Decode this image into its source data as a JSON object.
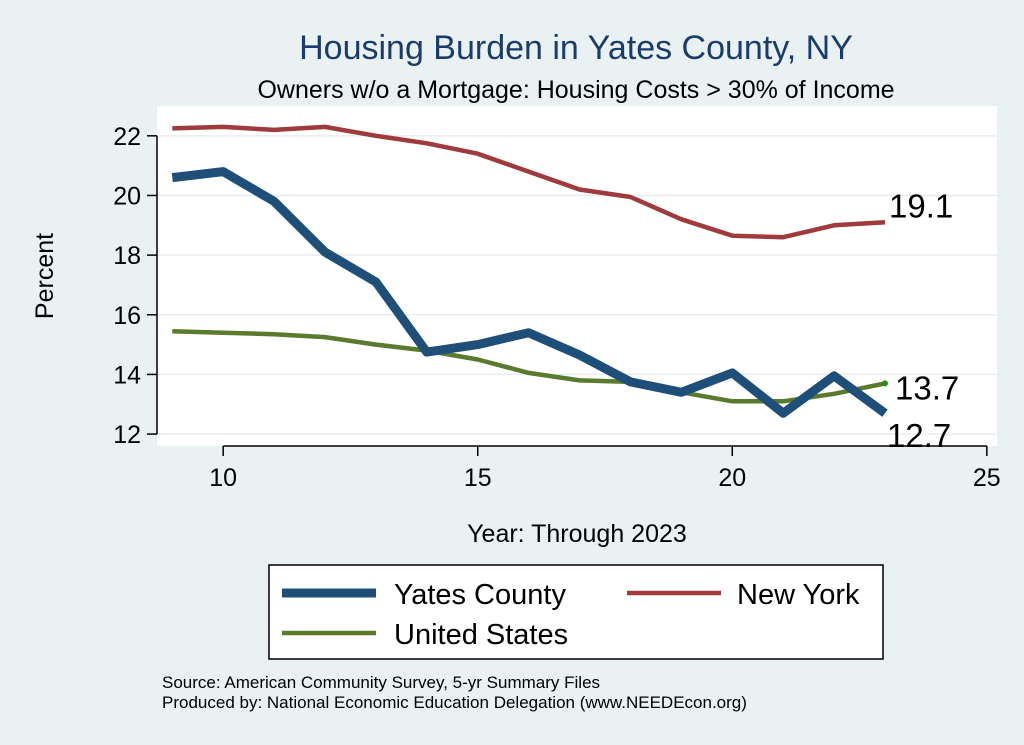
{
  "chart_data": {
    "type": "line",
    "title": "Housing Burden in Yates County, NY",
    "subtitle": "Owners w/o a Mortgage: Housing Costs > 30% of Income",
    "xlabel": "Year: Through 2023",
    "ylabel": "Percent",
    "xlim": [
      8.7,
      25.2
    ],
    "ylim": [
      11.6,
      23.0
    ],
    "xticks": [
      10,
      15,
      20,
      25
    ],
    "yticks": [
      12,
      14,
      16,
      18,
      20,
      22
    ],
    "grid": true,
    "legend_position": "bottom",
    "x": [
      9,
      10,
      11,
      12,
      13,
      14,
      15,
      16,
      17,
      18,
      19,
      20,
      21,
      22,
      23
    ],
    "series": [
      {
        "name": "Yates County",
        "color": "#1f4e79",
        "values": [
          20.6,
          20.8,
          19.8,
          18.1,
          17.1,
          14.75,
          15.0,
          15.4,
          14.65,
          13.75,
          13.4,
          14.05,
          12.7,
          13.95,
          12.7
        ]
      },
      {
        "name": "New York",
        "color": "#a03a3d",
        "values": [
          22.25,
          22.3,
          22.2,
          22.3,
          22.0,
          21.75,
          21.4,
          20.8,
          20.2,
          19.95,
          19.2,
          18.65,
          18.6,
          19.0,
          19.1
        ]
      },
      {
        "name": "United States",
        "color": "#5a7a2d",
        "values": [
          15.45,
          15.4,
          15.35,
          15.25,
          15.0,
          14.8,
          14.5,
          14.05,
          13.8,
          13.75,
          13.4,
          13.1,
          13.1,
          13.35,
          13.7
        ]
      }
    ],
    "end_labels": [
      "12.7",
      "19.1",
      "13.7"
    ],
    "notes": [
      "Source: American Community Survey, 5-yr Summary Files",
      "Produced by: National Economic Education Delegation (www.NEEDEcon.org)"
    ]
  }
}
